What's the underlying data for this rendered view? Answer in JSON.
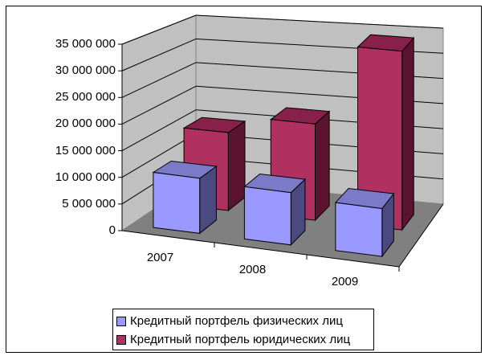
{
  "chart_data": {
    "type": "bar",
    "subtype": "3d-clustered-column",
    "title": "",
    "xlabel": "",
    "ylabel": "",
    "categories": [
      "2007",
      "2008",
      "2009"
    ],
    "series": [
      {
        "name": "Кредитный портфель физических лиц",
        "color": "#9999FF",
        "side_color": "#4A4A80",
        "top_color": "#7A7AC8",
        "values": [
          10500000,
          10000000,
          9200000
        ]
      },
      {
        "name": "Кредитный портфель юридических лиц",
        "color": "#B03060",
        "side_color": "#5A1430",
        "top_color": "#88204C",
        "values": [
          15500000,
          19000000,
          35000000
        ]
      }
    ],
    "ylim": [
      0,
      35000000
    ],
    "yticks": [
      0,
      5000000,
      10000000,
      15000000,
      20000000,
      25000000,
      30000000,
      35000000
    ],
    "ytick_labels": [
      "0",
      "5 000 000",
      "10 000 000",
      "15 000 000",
      "20 000 000",
      "25 000 000",
      "30 000 000",
      "35 000 000"
    ],
    "grid": true,
    "legend_position": "bottom",
    "colors": {
      "walls": "#C0C0C0",
      "floor": "#808080",
      "wall_edge": "#808080",
      "gridline": "#000000"
    }
  },
  "legend": {
    "items": [
      {
        "label": "Кредитный портфель физических лиц",
        "color": "#9999FF"
      },
      {
        "label": "Кредитный портфель юридических лиц",
        "color": "#B03060"
      }
    ]
  }
}
